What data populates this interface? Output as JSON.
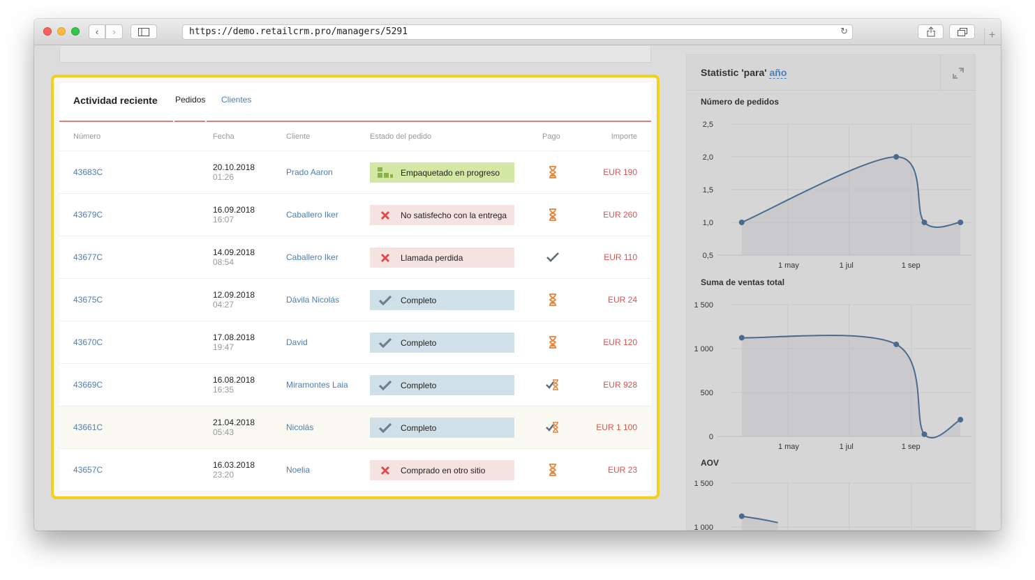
{
  "browser": {
    "url": "https://demo.retailcrm.pro/managers/5291",
    "icons": [
      "chevron-left-icon",
      "chevron-right-icon",
      "sidebar-icon",
      "reload-icon",
      "share-icon",
      "tabs-icon",
      "plus-icon"
    ]
  },
  "card": {
    "title": "Actividad reciente",
    "tabs": [
      "Pedidos",
      "Clientes"
    ],
    "headers": {
      "numero": "Número",
      "fecha": "Fecha",
      "cliente": "Cliente",
      "estado": "Estado del pedido",
      "pago": "Pago",
      "importe": "Importe"
    },
    "orders": [
      {
        "number": "43683C",
        "date": "20.10.2018",
        "time": "01:26",
        "client": "Prado Aaron",
        "status": "Empaquetado en progreso",
        "status_kind": "packing",
        "payment": "pending",
        "amount": "EUR 190"
      },
      {
        "number": "43679C",
        "date": "16.09.2018",
        "time": "16:07",
        "client": "Caballero Iker",
        "status": "No satisfecho con la entrega",
        "status_kind": "cancel",
        "payment": "pending",
        "amount": "EUR 260"
      },
      {
        "number": "43677C",
        "date": "14.09.2018",
        "time": "08:54",
        "client": "Caballero Iker",
        "status": "Llamada perdida",
        "status_kind": "cancel",
        "payment": "paid",
        "amount": "EUR 110"
      },
      {
        "number": "43675C",
        "date": "12.09.2018",
        "time": "04:27",
        "client": "Dávila Nicolás",
        "status": "Completo",
        "status_kind": "complete",
        "payment": "pending",
        "amount": "EUR 24"
      },
      {
        "number": "43670C",
        "date": "17.08.2018",
        "time": "19:47",
        "client": "David",
        "status": "Completo",
        "status_kind": "complete",
        "payment": "pending",
        "amount": "EUR 120"
      },
      {
        "number": "43669C",
        "date": "16.08.2018",
        "time": "16:35",
        "client": "Miramontes Laia",
        "status": "Completo",
        "status_kind": "complete",
        "payment": "partial",
        "amount": "EUR 928"
      },
      {
        "number": "43661C",
        "date": "21.04.2018",
        "time": "05:43",
        "client": "Nicolás",
        "status": "Completo",
        "status_kind": "complete",
        "payment": "partial",
        "amount": "EUR 1 100"
      },
      {
        "number": "43657C",
        "date": "16.03.2018",
        "time": "23:20",
        "client": "Noelia",
        "status": "Comprado en otro sitio",
        "status_kind": "cancel",
        "payment": "pending",
        "amount": "EUR 23"
      }
    ],
    "colors": {
      "link": "#4b7fb6",
      "amount": "#d9534f",
      "pending": "#e8833a",
      "paid": "#5b6b7d",
      "highlight": "#f3d01a"
    }
  },
  "stats": {
    "title_prefix": "Statistic 'para'",
    "period": "año"
  },
  "chart_data": [
    {
      "type": "line",
      "title": "Número de pedidos",
      "x": [
        "2018-03-16",
        "2018-08-17",
        "2018-09-14",
        "2018-10-20"
      ],
      "values": [
        1.0,
        2.0,
        1.0,
        1.0
      ],
      "xticks": [
        "1 may",
        "1 jul",
        "1 sep"
      ],
      "yticks": [
        "0,5",
        "1,0",
        "1,5",
        "2,0",
        "2,5"
      ],
      "ylim": [
        0.5,
        2.5
      ]
    },
    {
      "type": "line",
      "title": "Suma de ventas total",
      "x": [
        "2018-03-16",
        "2018-08-17",
        "2018-09-14",
        "2018-10-20"
      ],
      "values": [
        1123,
        1048,
        24,
        190
      ],
      "xticks": [
        "1 may",
        "1 jul",
        "1 sep"
      ],
      "yticks": [
        "0",
        "500",
        "1 000",
        "1 500"
      ],
      "ylim": [
        0,
        1500
      ]
    },
    {
      "type": "line",
      "title": "AOV",
      "values": [
        1123,
        1050
      ],
      "yticks": [
        "1 000",
        "1 500"
      ],
      "ylim": [
        1000,
        1500
      ]
    }
  ]
}
